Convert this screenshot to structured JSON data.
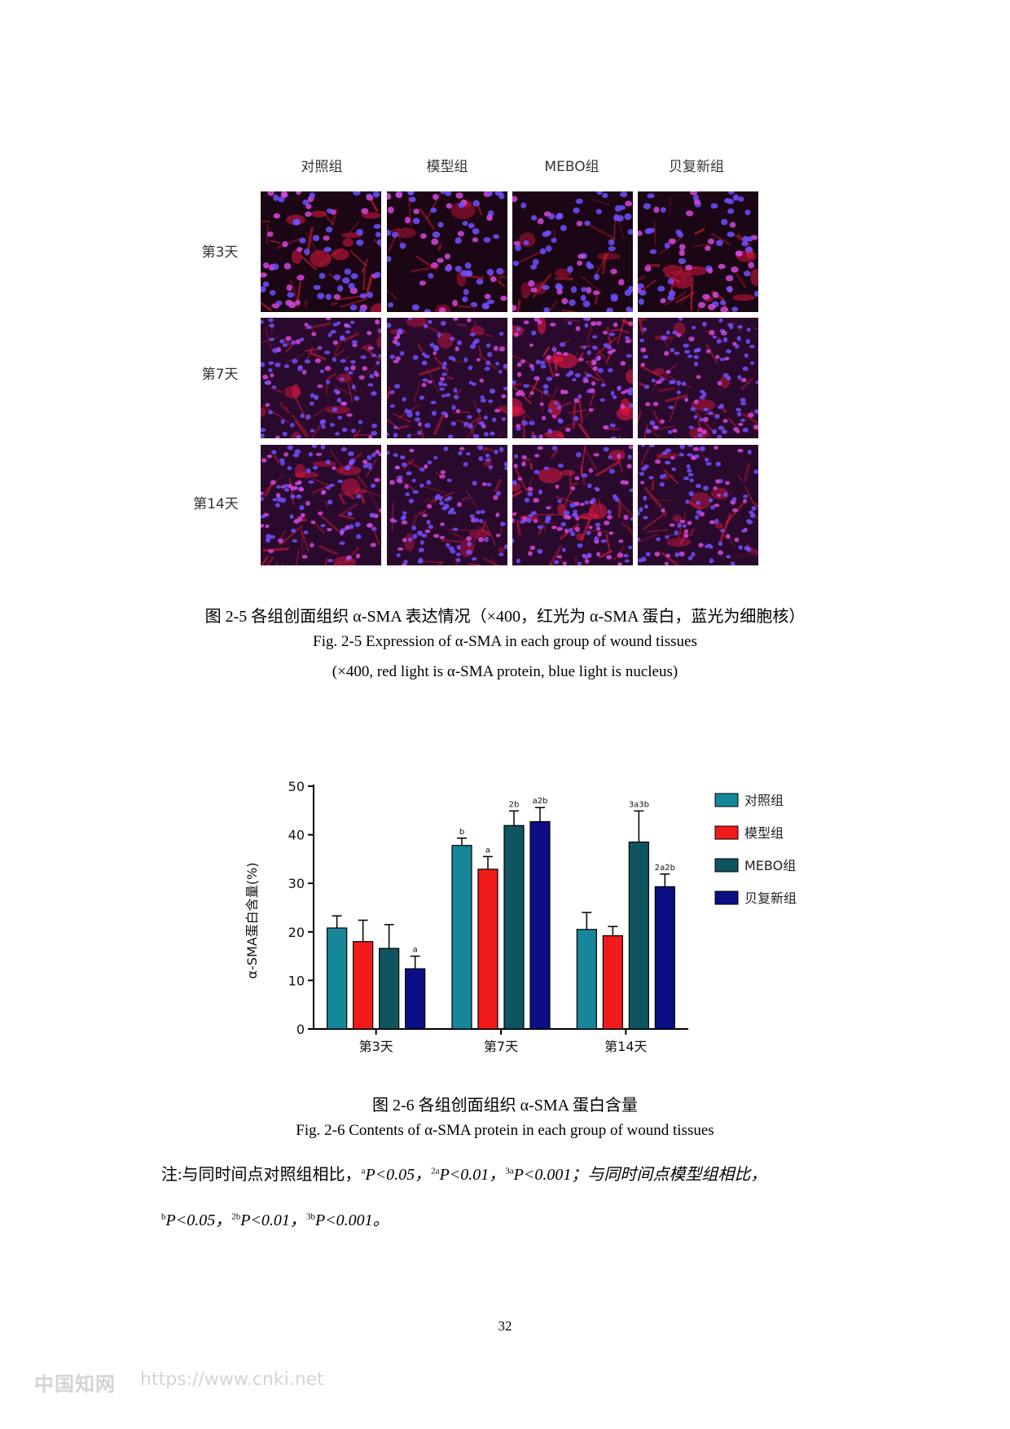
{
  "figure_2_5": {
    "column_labels": [
      "对照组",
      "模型组",
      "MEBO组",
      "贝复新组"
    ],
    "row_labels": [
      "第3天",
      "第7天",
      "第14天"
    ],
    "panel_intensity_red": [
      [
        0.75,
        0.45,
        0.45,
        0.7
      ],
      [
        0.55,
        0.45,
        0.9,
        0.5
      ],
      [
        0.6,
        0.4,
        0.75,
        0.5
      ]
    ],
    "caption_zh": "图 2-5 各组创面组织 α-SMA 表达情况（×400，红光为 α-SMA 蛋白，蓝光为细胞核）",
    "caption_en_1": "Fig. 2-5 Expression of α-SMA in each group of wound tissues",
    "caption_en_2": "(×400, red light is α-SMA protein, blue light is nucleus)"
  },
  "chart_data": {
    "type": "bar",
    "categories": [
      "第3天",
      "第7天",
      "第14天"
    ],
    "series": [
      {
        "name": "对照组",
        "color": "#16869a",
        "values": [
          20.8,
          37.8,
          20.5
        ],
        "errors": [
          2.5,
          1.5,
          3.5
        ],
        "labels": [
          "",
          "b",
          ""
        ]
      },
      {
        "name": "模型组",
        "color": "#f21b1b",
        "values": [
          18.0,
          32.9,
          19.2
        ],
        "errors": [
          4.4,
          2.6,
          1.9
        ],
        "labels": [
          "",
          "a",
          ""
        ]
      },
      {
        "name": "MEBO组",
        "color": "#0e5461",
        "values": [
          16.6,
          41.9,
          38.5
        ],
        "errors": [
          4.9,
          3.0,
          6.4
        ],
        "labels": [
          "",
          "2b",
          "3a3b"
        ]
      },
      {
        "name": "贝复新组",
        "color": "#0b0e84",
        "values": [
          12.4,
          42.7,
          29.3
        ],
        "errors": [
          2.6,
          2.9,
          2.6
        ],
        "labels": [
          "a",
          "a2b",
          "2a2b"
        ]
      }
    ],
    "ylabel": "α-SMA蛋白含量(%)",
    "ylim": [
      0,
      50
    ],
    "yticks": [
      0,
      10,
      20,
      30,
      40,
      50
    ],
    "legend_position": "right",
    "grid": false
  },
  "figure_2_6": {
    "caption_zh": "图 2-6  各组创面组织 α-SMA 蛋白含量",
    "caption_en": "Fig. 2-6 Contents of α-SMA protein in each group of wound tissues"
  },
  "note": {
    "prefix": "注:与同时间点对照组相比，",
    "a1_sup": "a",
    "a1_text": "P<0.05，",
    "a2_sup": "2a",
    "a2_text": "P<0.01，",
    "a3_sup": "3a",
    "a3_text": "P<0.001；与同时间点模型组相比，",
    "b1_sup": "b",
    "b1_text": "P<0.05，",
    "b2_sup": "2b",
    "b2_text": "P<0.01，",
    "b3_sup": "3b",
    "b3_text": "P<0.001。"
  },
  "page_number": "32",
  "watermark": {
    "site": "中国知网",
    "url": "https://www.cnki.net"
  }
}
